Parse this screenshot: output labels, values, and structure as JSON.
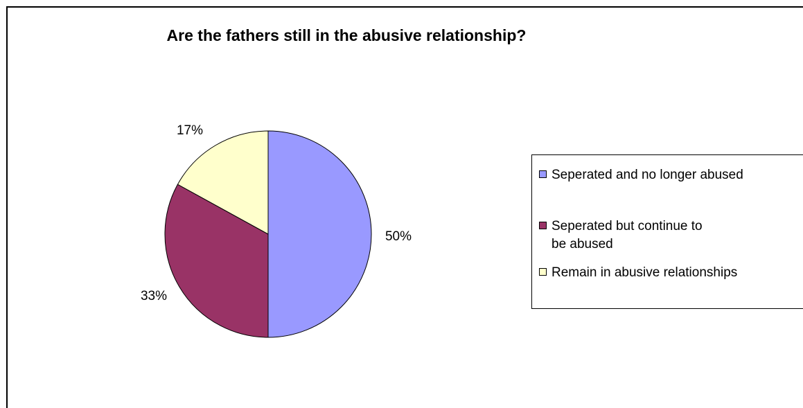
{
  "chart_data": {
    "type": "pie",
    "title": "Are the fathers still in the abusive relationship?",
    "categories": [
      "Seperated and no longer abused",
      "Seperated but continue to be abused",
      "Remain in abusive relationships"
    ],
    "values": [
      50,
      33,
      17
    ],
    "labels": [
      "50%",
      "33%",
      "17%"
    ],
    "colors": [
      "#9999ff",
      "#993366",
      "#ffffcc"
    ],
    "legend_position": "right"
  }
}
